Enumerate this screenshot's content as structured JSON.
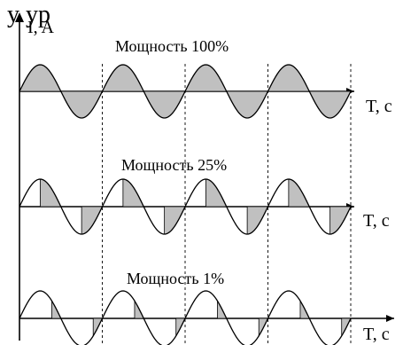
{
  "header_fragment": "у ур",
  "y_axis_label": "I, A",
  "x_axis_label": "T, c",
  "colors": {
    "fill": "#c0c0c0",
    "line": "#000000",
    "background": "#ffffff"
  },
  "panels": [
    {
      "title": "Мощность 100%",
      "power_percent": 100
    },
    {
      "title": "Мощность 25%",
      "power_percent": 25
    },
    {
      "title": "Мощность 1%",
      "power_percent": 1
    }
  ]
}
